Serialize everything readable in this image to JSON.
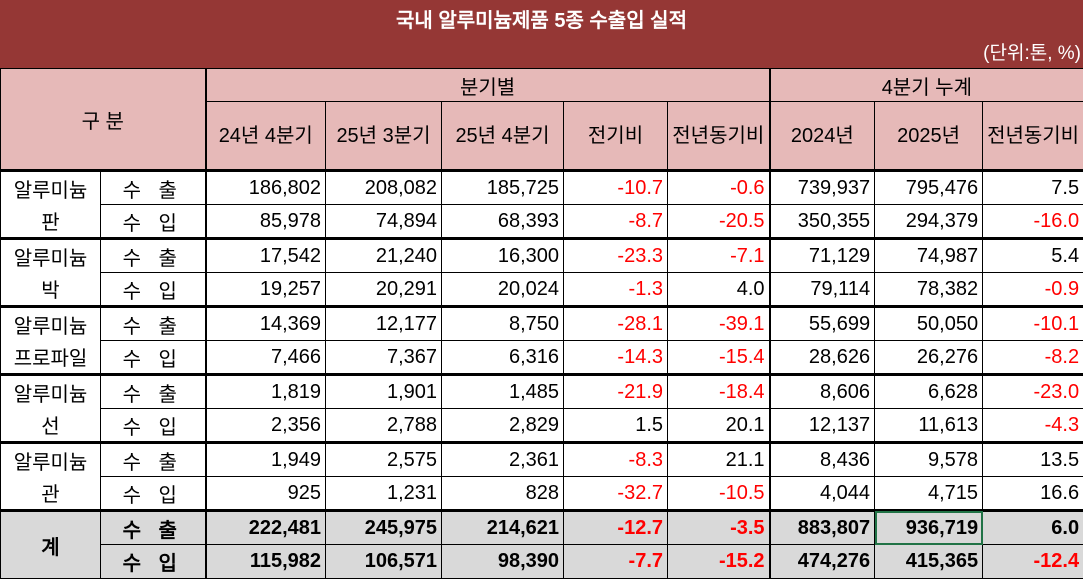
{
  "title": "국내 알루미늄제품 5종 수출입 실적",
  "unit": "(단위:톤, %)",
  "header": {
    "category": "구 분",
    "quarterly": "분기별",
    "cumulative": "4분기 누계",
    "columns": [
      "24년 4분기",
      "25년 3분기",
      "25년 4분기",
      "전기비",
      "전년동기비",
      "2024년",
      "2025년",
      "전년동기비"
    ]
  },
  "colors": {
    "banner": "#953735",
    "header_bg": "#e6b9b8",
    "negative": "#ff0000",
    "total_bg": "#d9d9d9"
  },
  "groups": [
    {
      "name": [
        "알루미늄",
        "판"
      ],
      "rows": [
        {
          "flow": "수 출",
          "values": [
            "186,802",
            "208,082",
            "185,725",
            "-10.7",
            "-0.6",
            "739,937",
            "795,476",
            "7.5"
          ]
        },
        {
          "flow": "수 입",
          "values": [
            "85,978",
            "74,894",
            "68,393",
            "-8.7",
            "-20.5",
            "350,355",
            "294,379",
            "-16.0"
          ]
        }
      ]
    },
    {
      "name": [
        "알루미늄",
        "박"
      ],
      "rows": [
        {
          "flow": "수 출",
          "values": [
            "17,542",
            "21,240",
            "16,300",
            "-23.3",
            "-7.1",
            "71,129",
            "74,987",
            "5.4"
          ]
        },
        {
          "flow": "수 입",
          "values": [
            "19,257",
            "20,291",
            "20,024",
            "-1.3",
            "4.0",
            "79,114",
            "78,382",
            "-0.9"
          ]
        }
      ]
    },
    {
      "name": [
        "알루미늄",
        "프로파일"
      ],
      "rows": [
        {
          "flow": "수 출",
          "values": [
            "14,369",
            "12,177",
            "8,750",
            "-28.1",
            "-39.1",
            "55,699",
            "50,050",
            "-10.1"
          ]
        },
        {
          "flow": "수 입",
          "values": [
            "7,466",
            "7,367",
            "6,316",
            "-14.3",
            "-15.4",
            "28,626",
            "26,276",
            "-8.2"
          ]
        }
      ]
    },
    {
      "name": [
        "알루미늄",
        "선"
      ],
      "rows": [
        {
          "flow": "수 출",
          "values": [
            "1,819",
            "1,901",
            "1,485",
            "-21.9",
            "-18.4",
            "8,606",
            "6,628",
            "-23.0"
          ]
        },
        {
          "flow": "수 입",
          "values": [
            "2,356",
            "2,788",
            "2,829",
            "1.5",
            "20.1",
            "12,137",
            "11,613",
            "-4.3"
          ]
        }
      ]
    },
    {
      "name": [
        "알루미늄",
        "관"
      ],
      "rows": [
        {
          "flow": "수 출",
          "values": [
            "1,949",
            "2,575",
            "2,361",
            "-8.3",
            "21.1",
            "8,436",
            "9,578",
            "13.5"
          ]
        },
        {
          "flow": "수 입",
          "values": [
            "925",
            "1,231",
            "828",
            "-32.7",
            "-10.5",
            "4,044",
            "4,715",
            "16.6"
          ]
        }
      ]
    }
  ],
  "total": {
    "name": "계",
    "rows": [
      {
        "flow": "수 출",
        "values": [
          "222,481",
          "245,975",
          "214,621",
          "-12.7",
          "-3.5",
          "883,807",
          "936,719",
          "6.0"
        ]
      },
      {
        "flow": "수 입",
        "values": [
          "115,982",
          "106,571",
          "98,390",
          "-7.7",
          "-15.2",
          "474,276",
          "415,365",
          "-12.4"
        ]
      }
    ]
  }
}
